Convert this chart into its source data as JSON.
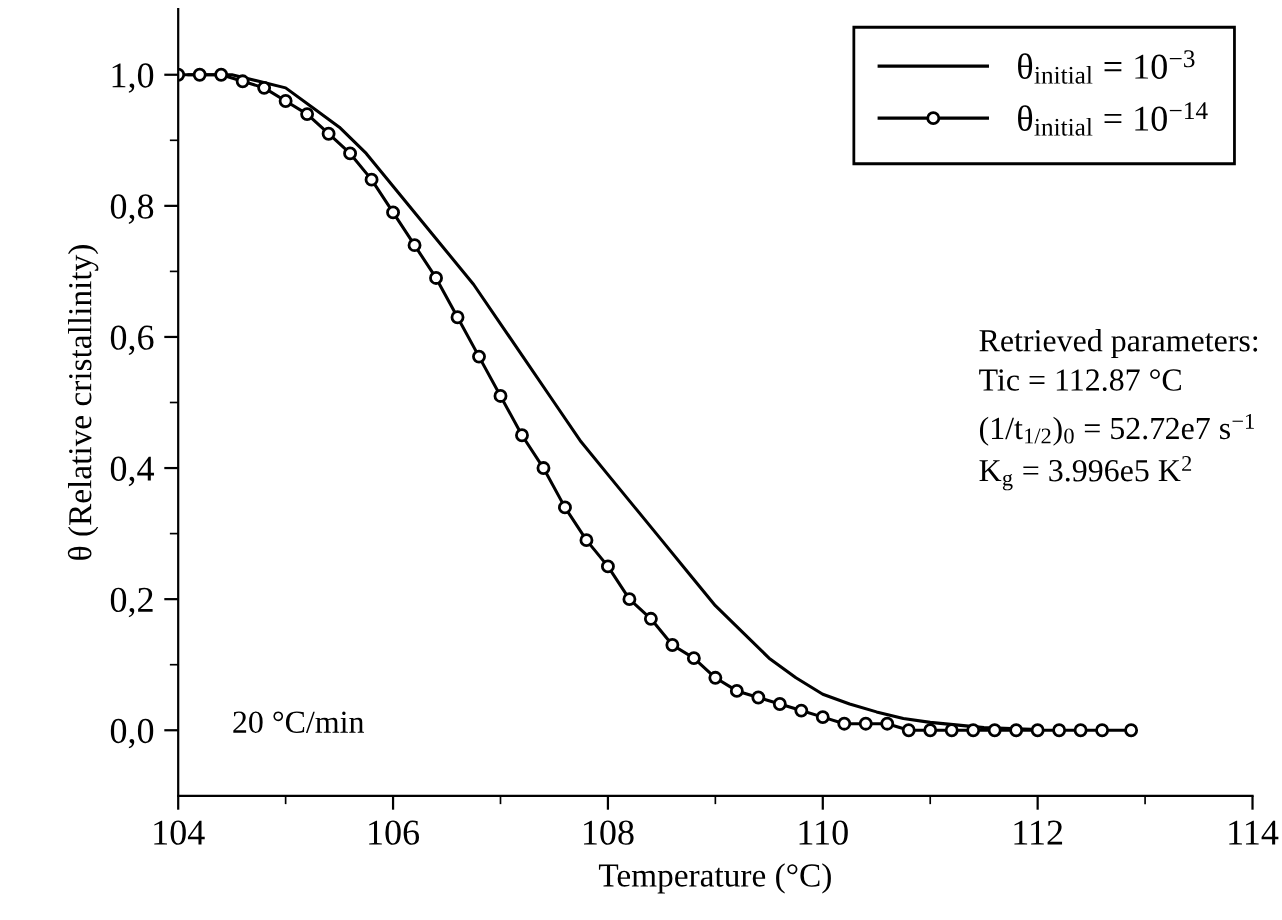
{
  "chart_data": {
    "type": "line",
    "xlabel": "Temperature (°C)",
    "ylabel": "θ (Relative cristallinity)",
    "xlim": [
      104,
      114
    ],
    "ylim": [
      -0.1,
      1.1
    ],
    "xticks": [
      104,
      {
        "value": 105,
        "label": null
      },
      106,
      {
        "value": 107,
        "label": null
      },
      108,
      {
        "value": 109,
        "label": null
      },
      110,
      {
        "value": 111,
        "label": null
      },
      112,
      {
        "value": 113,
        "label": null
      },
      114
    ],
    "yticks": [
      {
        "value": 0.0,
        "label": "0,0"
      },
      {
        "value": 0.1,
        "label": null
      },
      {
        "value": 0.2,
        "label": "0,2"
      },
      {
        "value": 0.3,
        "label": null
      },
      {
        "value": 0.4,
        "label": "0,4"
      },
      {
        "value": 0.5,
        "label": null
      },
      {
        "value": 0.6,
        "label": "0,6"
      },
      {
        "value": 0.7,
        "label": null
      },
      {
        "value": 0.8,
        "label": "0,8"
      },
      {
        "value": 0.9,
        "label": null
      },
      {
        "value": 1.0,
        "label": "1,0"
      }
    ],
    "grid": false,
    "legend": "top right",
    "series": [
      {
        "name": "θ$_{initial}$ = 10$^{−3}$",
        "color": "#000000",
        "marker": "none",
        "x": [
          104.1,
          104.5,
          104.75,
          105,
          105.25,
          105.5,
          105.75,
          106,
          106.25,
          106.5,
          106.75,
          107,
          107.25,
          107.5,
          107.75,
          108,
          108.25,
          108.5,
          108.75,
          109,
          109.25,
          109.5,
          109.75,
          110,
          110.25,
          110.5,
          110.75,
          111,
          111.5,
          112
        ],
        "values": [
          1.0,
          1.0,
          0.99,
          0.98,
          0.95,
          0.92,
          0.88,
          0.83,
          0.78,
          0.73,
          0.68,
          0.62,
          0.56,
          0.5,
          0.44,
          0.39,
          0.34,
          0.29,
          0.24,
          0.19,
          0.15,
          0.11,
          0.08,
          0.055,
          0.04,
          0.028,
          0.018,
          0.012,
          0.004,
          0.001
        ]
      },
      {
        "name": "θ$_{initial}$ = 10$^{−14}$",
        "color": "#000000",
        "marker": "circle",
        "x": [
          104.0,
          104.2,
          104.4,
          104.6,
          104.8,
          105.0,
          105.2,
          105.4,
          105.6,
          105.8,
          106.0,
          106.2,
          106.4,
          106.6,
          106.8,
          107.0,
          107.2,
          107.4,
          107.6,
          107.8,
          108.0,
          108.2,
          108.4,
          108.6,
          108.8,
          109.0,
          109.2,
          109.4,
          109.6,
          109.8,
          110.0,
          110.2,
          110.4,
          110.6,
          110.8,
          111.0,
          111.2,
          111.4,
          111.6,
          111.8,
          112.0,
          112.2,
          112.4,
          112.6,
          112.87
        ],
        "values": [
          1.0,
          1.0,
          1.0,
          0.99,
          0.98,
          0.96,
          0.94,
          0.91,
          0.88,
          0.84,
          0.79,
          0.74,
          0.69,
          0.63,
          0.57,
          0.51,
          0.45,
          0.4,
          0.34,
          0.29,
          0.25,
          0.2,
          0.17,
          0.13,
          0.11,
          0.08,
          0.06,
          0.05,
          0.04,
          0.03,
          0.02,
          0.01,
          0.01,
          0.01,
          0.0,
          0.0,
          0.0,
          0.0,
          0.0,
          0.0,
          0.0,
          0.0,
          0.0,
          0.0,
          0.0
        ]
      }
    ],
    "annotations": [
      "Retrieved parameters:",
      "Tic = 112.87 °C",
      "(1/t$_{1/2}$)$_{0}$ = 52.72e7 s$^{−1}$",
      "K$_{g}$ = 3.996e5 K$^{2}$",
      "20 °C/min"
    ]
  }
}
